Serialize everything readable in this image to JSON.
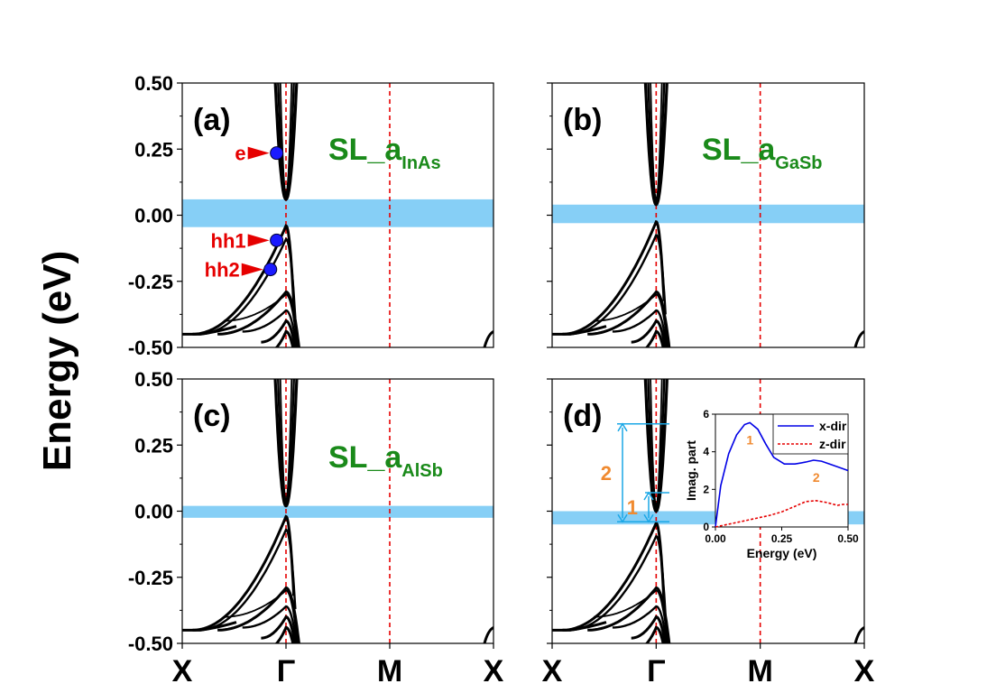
{
  "figure": {
    "y_axis_label": "Energy (eV)",
    "y_ticks": [
      "0.50",
      "0.25",
      "0.00",
      "-0.25",
      "-0.50"
    ],
    "k_points": [
      "X",
      "Γ",
      "M",
      "X"
    ]
  },
  "chart_data": [
    {
      "type": "line",
      "panel_label": "(a)",
      "title_main": "SL_a",
      "title_sub": "InAs",
      "ylim": [
        -0.5,
        0.5
      ],
      "gap": [
        -0.045,
        0.06
      ],
      "annotations": [
        {
          "label": "e",
          "k": -0.03,
          "energy": 0.235
        },
        {
          "label": "hh1",
          "k": -0.03,
          "energy": -0.095
        },
        {
          "label": "hh2",
          "k": -0.05,
          "energy": -0.205
        }
      ]
    },
    {
      "type": "line",
      "panel_label": "(b)",
      "title_main": "SL_a",
      "title_sub": "GaSb",
      "ylim": [
        -0.5,
        0.5
      ],
      "gap": [
        -0.03,
        0.04
      ]
    },
    {
      "type": "line",
      "panel_label": "(c)",
      "title_main": "SL_a",
      "title_sub": "AlSb",
      "ylim": [
        -0.5,
        0.5
      ],
      "gap": [
        -0.025,
        0.02
      ]
    },
    {
      "type": "line",
      "panel_label": "(d)",
      "ylim": [
        -0.5,
        0.5
      ],
      "gap": [
        -0.05,
        0.0
      ],
      "transitions": [
        {
          "label": "1",
          "from": -0.04,
          "to": 0.07
        },
        {
          "label": "2",
          "from": -0.04,
          "to": 0.33
        }
      ],
      "inset": {
        "type": "line",
        "xlabel": "Energy (eV)",
        "ylabel": "Imag. part",
        "xlim": [
          0.0,
          0.5
        ],
        "ylim": [
          0,
          6
        ],
        "x_ticks": [
          "0.00",
          "0.25",
          "0.50"
        ],
        "y_ticks": [
          "0",
          "2",
          "4",
          "6"
        ],
        "series": [
          {
            "name": "x-dir",
            "color": "#0000e6",
            "x": [
              0.0,
              0.02,
              0.05,
              0.08,
              0.11,
              0.13,
              0.16,
              0.19,
              0.22,
              0.26,
              0.3,
              0.34,
              0.37,
              0.4,
              0.44,
              0.48,
              0.5
            ],
            "y": [
              0.0,
              2.2,
              3.9,
              4.9,
              5.45,
              5.55,
              5.2,
              4.4,
              3.7,
              3.35,
              3.35,
              3.45,
              3.55,
              3.5,
              3.3,
              3.1,
              3.0
            ]
          },
          {
            "name": "z-dir",
            "color": "#e60000",
            "x": [
              0.0,
              0.05,
              0.1,
              0.15,
              0.2,
              0.25,
              0.3,
              0.34,
              0.38,
              0.42,
              0.46,
              0.48,
              0.5
            ],
            "y": [
              0.0,
              0.15,
              0.3,
              0.45,
              0.6,
              0.8,
              1.1,
              1.35,
              1.4,
              1.3,
              1.15,
              1.2,
              1.2
            ]
          }
        ],
        "peak_labels": [
          {
            "label": "1",
            "x": 0.13,
            "y": 4.4
          },
          {
            "label": "2",
            "x": 0.38,
            "y": 2.4
          }
        ]
      }
    }
  ]
}
